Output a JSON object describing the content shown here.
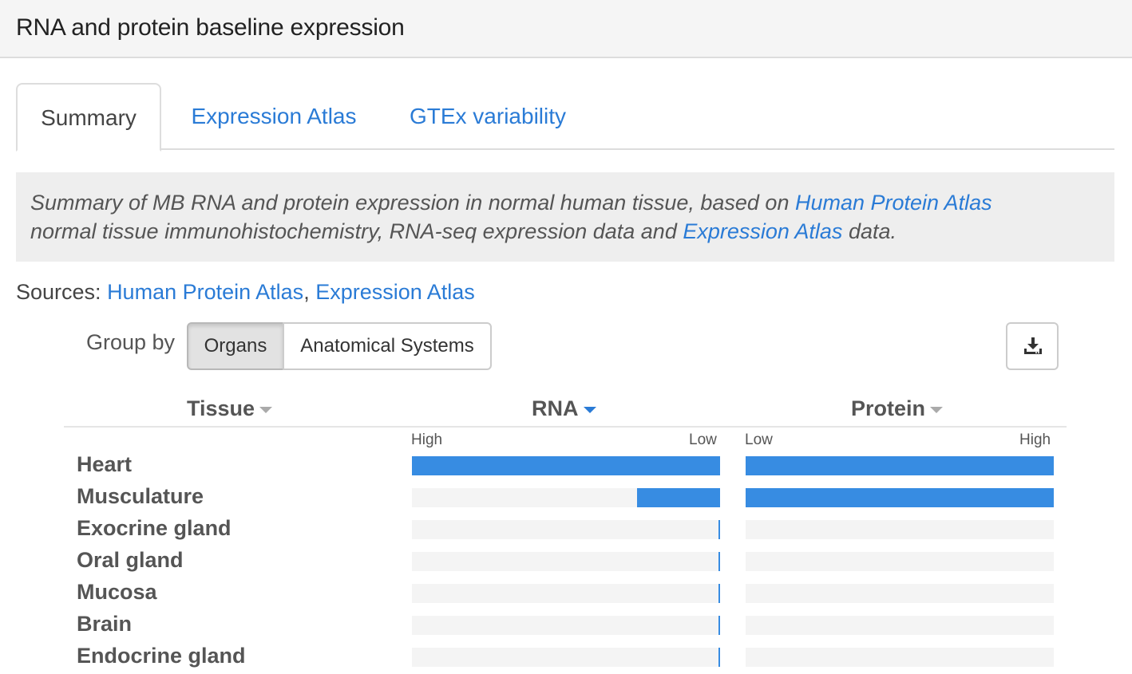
{
  "header": {
    "title": "RNA and protein baseline expression"
  },
  "tabs": [
    {
      "label": "Summary",
      "active": true
    },
    {
      "label": "Expression Atlas",
      "active": false
    },
    {
      "label": "GTEx variability",
      "active": false
    }
  ],
  "summary": {
    "text_1": "Summary of MB RNA and protein expression in normal human tissue, based on ",
    "link_hpa": "Human Protein Atlas",
    "text_2": " normal tissue immunohistochemistry, RNA-seq expression data and ",
    "link_ea": "Expression Atlas",
    "text_3": " data."
  },
  "sources": {
    "label": "Sources: ",
    "link_hpa": "Human Protein Atlas",
    "separator": ", ",
    "link_ea": "Expression Atlas"
  },
  "group_by": {
    "label": "Group by",
    "options": [
      "Organs",
      "Anatomical Systems"
    ],
    "selected": "Organs"
  },
  "download": {
    "icon": "download-icon"
  },
  "table": {
    "columns": {
      "tissue": "Tissue",
      "rna": "RNA",
      "protein": "Protein"
    },
    "sort_column": "RNA",
    "rna_scale": {
      "left": "High",
      "right": "Low"
    },
    "protein_scale": {
      "left": "Low",
      "right": "High"
    },
    "accent_color": "#378ce2",
    "rows": [
      {
        "tissue": "Heart",
        "rna": 1.0,
        "protein": 1.0
      },
      {
        "tissue": "Musculature",
        "rna": 0.27,
        "protein": 1.0
      },
      {
        "tissue": "Exocrine gland",
        "rna": 0.005,
        "protein": 0
      },
      {
        "tissue": "Oral gland",
        "rna": 0.005,
        "protein": 0
      },
      {
        "tissue": "Mucosa",
        "rna": 0.005,
        "protein": 0
      },
      {
        "tissue": "Brain",
        "rna": 0.005,
        "protein": 0
      },
      {
        "tissue": "Endocrine gland",
        "rna": 0.005,
        "protein": 0
      }
    ]
  }
}
